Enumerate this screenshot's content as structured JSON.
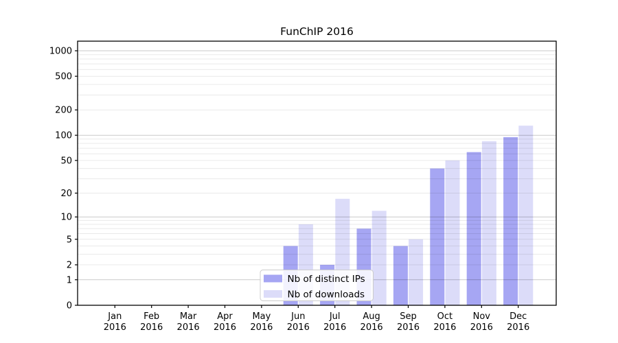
{
  "page": {
    "background": "#ffffff"
  },
  "chart_data": {
    "type": "bar",
    "title": "FunChIP 2016",
    "year_label": "2016",
    "categories": [
      "Jan",
      "Feb",
      "Mar",
      "Apr",
      "May",
      "Jun",
      "Jul",
      "Aug",
      "Sep",
      "Oct",
      "Nov",
      "Dec"
    ],
    "series": [
      {
        "name": "Nb of distinct IPs",
        "color": "#a6a6f3",
        "values": [
          0,
          0,
          0,
          0,
          0,
          4,
          2,
          7,
          4,
          40,
          63,
          95
        ]
      },
      {
        "name": "Nb of downloads",
        "color": "#dcdcf9",
        "values": [
          0,
          0,
          0,
          0,
          0,
          8,
          17,
          12,
          5,
          50,
          85,
          130
        ]
      }
    ],
    "y_scale": "log1p",
    "y_ticks": [
      0,
      1,
      2,
      5,
      10,
      20,
      50,
      100,
      200,
      500,
      1000
    ],
    "ylim": [
      0,
      1000
    ],
    "xlabel": "",
    "ylabel": "",
    "grid": true,
    "grid_minor_multiples": [
      2,
      3,
      4,
      5,
      6,
      7,
      8,
      9
    ],
    "legend_position": "inside-bottom-center-left"
  },
  "colors": {
    "bar_ips": "#a6a6f3",
    "bar_downloads": "#dcdcf9",
    "grid_major": "#c9c9c9",
    "grid_minor": "#e8e8e8",
    "axis": "#000000",
    "text": "#000000",
    "legend_border": "#cccccc",
    "legend_background": "#ffffff"
  }
}
